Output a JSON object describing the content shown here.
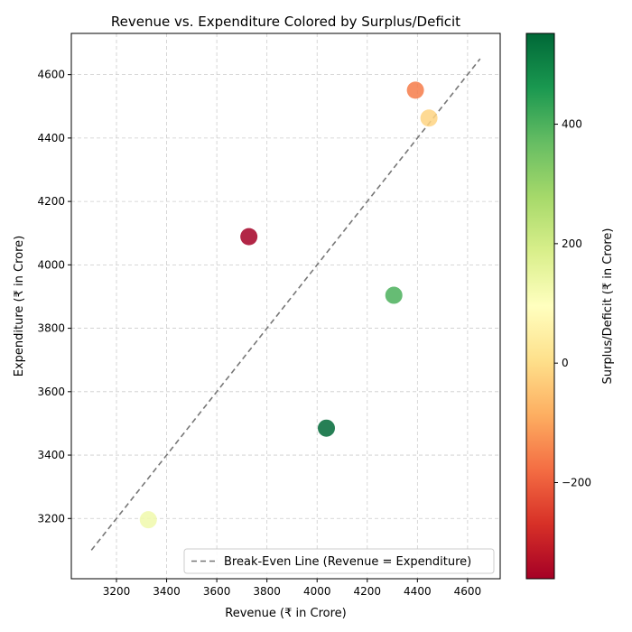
{
  "chart_data": {
    "type": "scatter",
    "title": "Revenue vs. Expenditure Colored by Surplus/Deficit",
    "xlabel": "Revenue (₹ in Crore)",
    "ylabel": "Expenditure (₹ in Crore)",
    "xlim": [
      3020,
      4730
    ],
    "ylim": [
      3010,
      4730
    ],
    "xticks": [
      3200,
      3400,
      3600,
      3800,
      4000,
      4200,
      4400,
      4600
    ],
    "yticks": [
      3200,
      3400,
      3600,
      3800,
      4000,
      4200,
      4400,
      4600
    ],
    "grid": true,
    "legend": {
      "placement": "bottom-right",
      "entries": [
        "Break-Even Line (Revenue = Expenditure)"
      ]
    },
    "break_even_line": {
      "x": [
        3100,
        4650
      ],
      "y": [
        3100,
        4650
      ],
      "style": "dashed",
      "color": "#777777"
    },
    "points": [
      {
        "x": 3327,
        "y": 3196,
        "surplus": 131
      },
      {
        "x": 3728,
        "y": 4089,
        "surplus": -361
      },
      {
        "x": 4037,
        "y": 3485,
        "surplus": 552
      },
      {
        "x": 4306,
        "y": 3904,
        "surplus": 402
      },
      {
        "x": 4392,
        "y": 4551,
        "surplus": -159
      },
      {
        "x": 4446,
        "y": 4463,
        "surplus": -17
      }
    ],
    "colorbar": {
      "label": "Surplus/Deficit (₹ in Crore)",
      "range": [
        -361,
        552
      ],
      "ticks": [
        -200,
        0,
        200,
        400
      ],
      "colormap": "RdYlGn",
      "stops": [
        "#a50026",
        "#d73027",
        "#f46d43",
        "#fdae61",
        "#fee08b",
        "#ffffbf",
        "#d9ef8b",
        "#a6d96a",
        "#66bd63",
        "#1a9850",
        "#006837"
      ]
    }
  }
}
